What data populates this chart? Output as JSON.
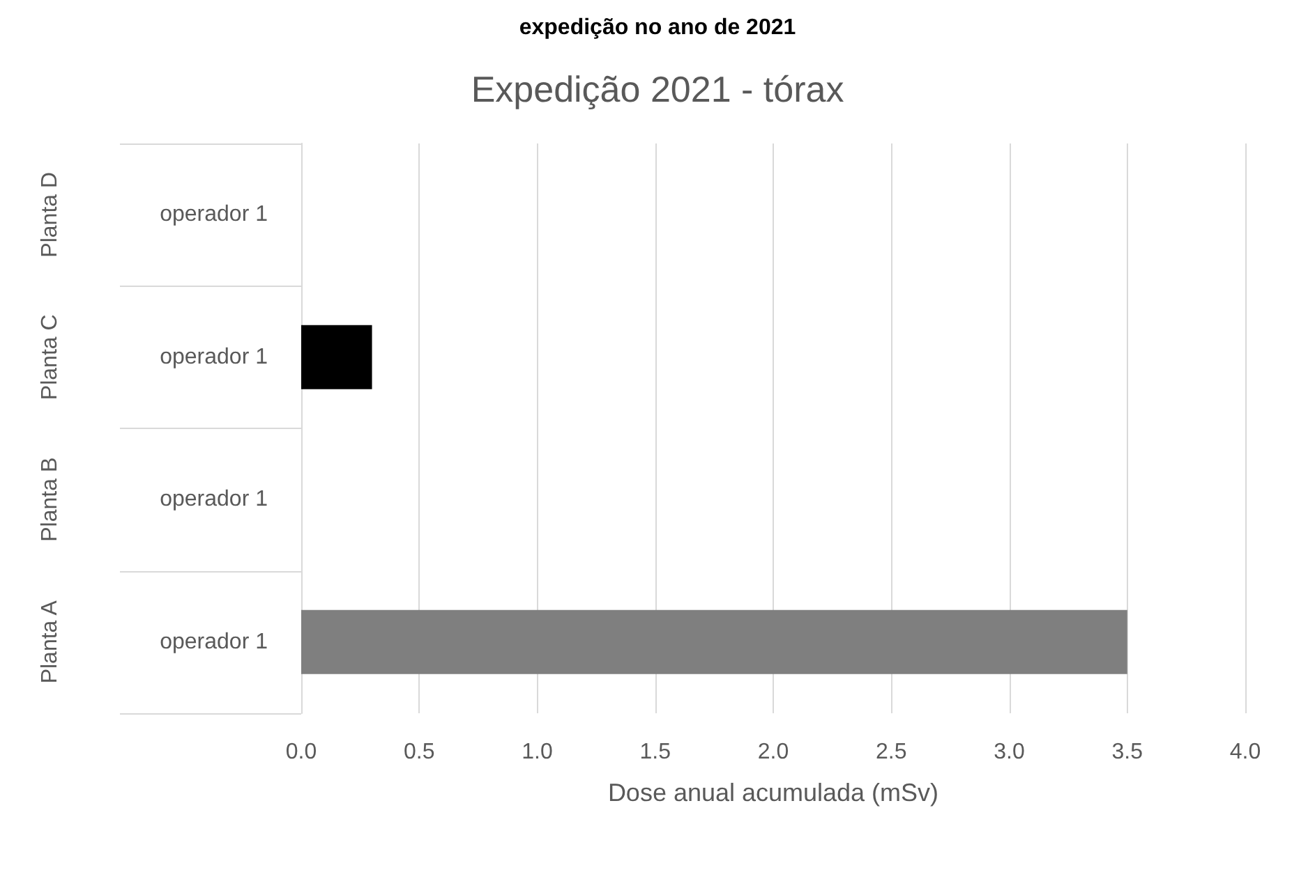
{
  "chart_data": {
    "type": "bar",
    "orientation": "horizontal",
    "title": "Expedição 2021 - tórax",
    "xlabel": "Dose anual acumulada (mSv)",
    "categories": [
      "operador 1",
      "operador 1",
      "operador 1",
      "operador 1"
    ],
    "values": [
      null,
      0.3,
      null,
      3.5
    ],
    "colors": [
      null,
      "#000000",
      null,
      "#7f7f7f"
    ],
    "xlim": [
      0,
      4
    ],
    "xticks": [
      {
        "value": 0,
        "label": "0.0"
      },
      {
        "value": 0.5,
        "label": "0.5"
      },
      {
        "value": 1,
        "label": "1.0"
      },
      {
        "value": 1.5,
        "label": "1.5"
      },
      {
        "value": 2,
        "label": "2.0"
      },
      {
        "value": 2.5,
        "label": "2.5"
      },
      {
        "value": 3,
        "label": "3.0"
      },
      {
        "value": 3.5,
        "label": "3.5"
      },
      {
        "value": 4,
        "label": "4.0"
      }
    ],
    "grid": "x",
    "annotations": [
      "expedição no ano de 2021",
      "Planta D",
      "Planta C",
      "Planta B",
      "Planta A"
    ]
  }
}
